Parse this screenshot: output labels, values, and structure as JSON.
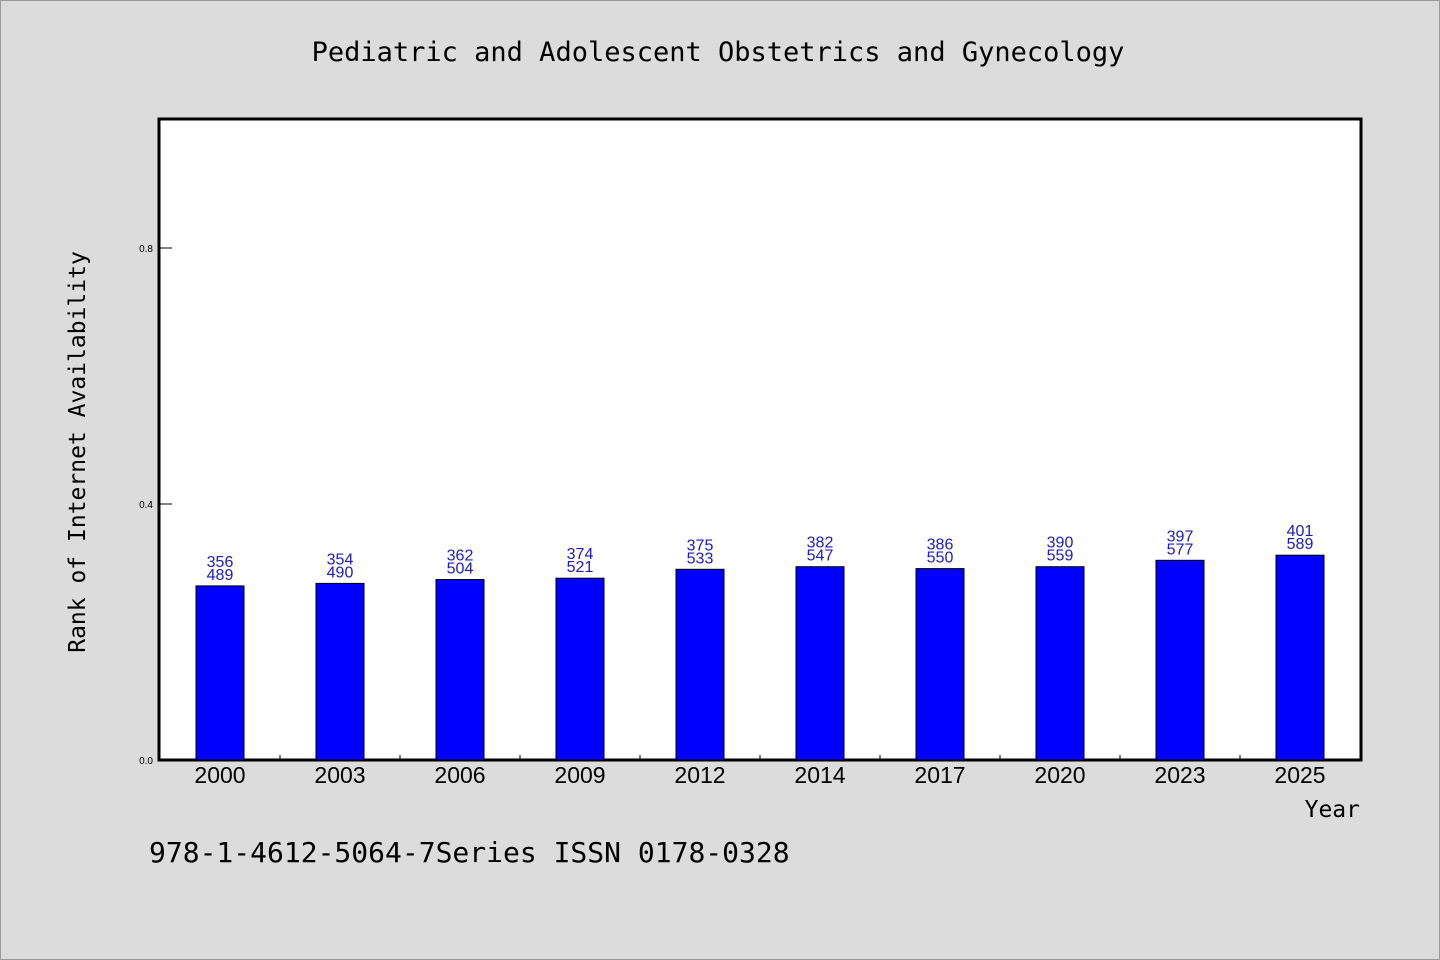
{
  "chart_data": {
    "type": "bar",
    "title": "Pediatric and Adolescent Obstetrics and Gynecology",
    "xlabel": "Year",
    "ylabel": "Rank of Internet Availability",
    "categories": [
      "2000",
      "2003",
      "2006",
      "2009",
      "2012",
      "2014",
      "2017",
      "2020",
      "2023",
      "2025"
    ],
    "values": [
      0.272,
      0.276,
      0.282,
      0.284,
      0.298,
      0.302,
      0.299,
      0.302,
      0.312,
      0.32
    ],
    "data_labels": [
      [
        "356",
        "489"
      ],
      [
        "354",
        "490"
      ],
      [
        "362",
        "504"
      ],
      [
        "374",
        "521"
      ],
      [
        "375",
        "533"
      ],
      [
        "382",
        "547"
      ],
      [
        "386",
        "550"
      ],
      [
        "390",
        "559"
      ],
      [
        "397",
        "577"
      ],
      [
        "401",
        "589"
      ]
    ],
    "yticks": [
      "0.0",
      "0.4",
      "0.8"
    ],
    "ylim": [
      0,
      1.0
    ],
    "grid": false,
    "legend": "none",
    "bar_color": "#0000ff",
    "label_color": "#1a1acc",
    "background_color": "#dcdcdc",
    "plot_background_color": "#ffffff"
  },
  "footer": {
    "text": "978-1-4612-5064-7Series ISSN 0178-0328"
  }
}
